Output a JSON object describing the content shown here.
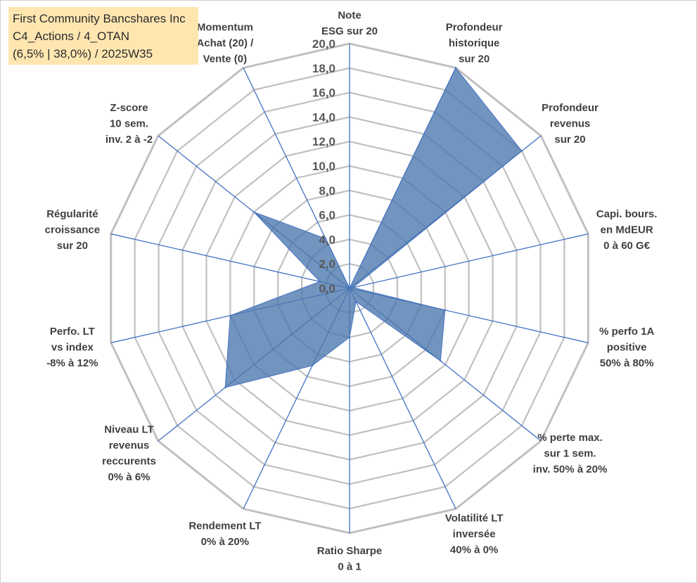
{
  "title_box": {
    "line1": "First Community Bancshares Inc",
    "line2": "C4_Actions / 4_OTAN",
    "line3": "(6,5% | 38,0%) / 2025W35"
  },
  "colors": {
    "grid": "#c0c0c0",
    "spoke": "#4472c4",
    "fill": "#4a77ad",
    "title_bg": "#ffe0a0"
  },
  "chart_data": {
    "type": "radar",
    "title": "",
    "rmax": 20,
    "rticks": [
      "0,0",
      "2,0",
      "4,0",
      "6,0",
      "8,0",
      "10,0",
      "12,0",
      "14,0",
      "16,0",
      "18,0",
      "20,0"
    ],
    "grid": true,
    "axes": [
      {
        "lines": [
          "Note",
          "ESG sur 20"
        ],
        "value": 0
      },
      {
        "lines": [
          "Profondeur",
          "historique",
          "sur 20"
        ],
        "value": 20
      },
      {
        "lines": [
          "Profondeur",
          "revenus",
          "sur 20"
        ],
        "value": 18
      },
      {
        "lines": [
          "Capi. bours.",
          "en MdEUR",
          "0 à 60 G€"
        ],
        "value": 0.3
      },
      {
        "lines": [
          "% perfo 1A",
          "positive",
          "50% à 80%"
        ],
        "value": 8
      },
      {
        "lines": [
          "% perte max.",
          "sur 1 sem.",
          "inv. 50% à 20%"
        ],
        "value": 9.5
      },
      {
        "lines": [
          "Volatilité LT",
          "inversée",
          "40% à 0%"
        ],
        "value": 1.2
      },
      {
        "lines": [
          "Ratio Sharpe",
          "0 à 1"
        ],
        "value": 4
      },
      {
        "lines": [
          "Rendement LT",
          "0% à 20%"
        ],
        "value": 7
      },
      {
        "lines": [
          "Niveau LT",
          "revenus",
          "reccurents",
          "0% à 6%"
        ],
        "value": 13
      },
      {
        "lines": [
          "Perfo. LT",
          "vs index",
          "-8% à 12%"
        ],
        "value": 10
      },
      {
        "lines": [
          "Régularité",
          "croissance",
          "sur 20"
        ],
        "value": 2.5
      },
      {
        "lines": [
          "Z-score",
          "10 sem.",
          "inv. 2 à -2"
        ],
        "value": 10
      },
      {
        "lines": [
          "Momentum",
          "Achat (20) /",
          "Vente (0)"
        ],
        "value": 4.5
      }
    ]
  }
}
